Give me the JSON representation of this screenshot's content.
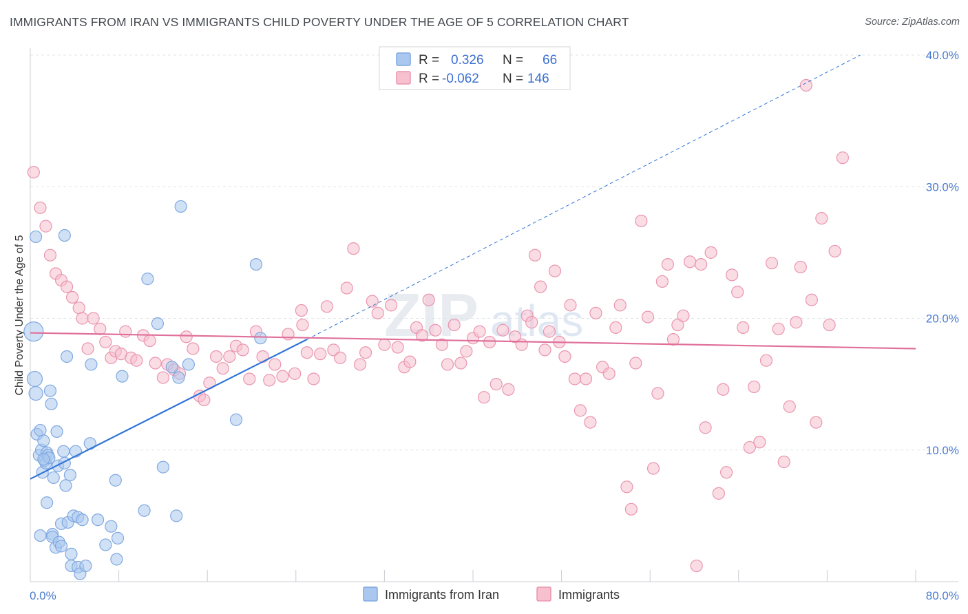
{
  "header": {
    "title": "IMMIGRANTS FROM IRAN VS IMMIGRANTS CHILD POVERTY UNDER THE AGE OF 5 CORRELATION CHART",
    "source": "Source: ZipAtlas.com"
  },
  "watermark": {
    "part1": "ZIP",
    "part2": "atlas"
  },
  "colors": {
    "blue_fill": "#aac8ef",
    "blue_stroke": "#7fa8e0",
    "blue_line": "#2f74d8",
    "pink_fill": "#f6c0cf",
    "pink_stroke": "#ea95ae",
    "pink_line": "#e0709a",
    "grid": "#dfe3e8",
    "tick_label": "#4a7cd0"
  },
  "legend": {
    "r_label": "R =",
    "n_label": "N =",
    "series": [
      {
        "r_value": "0.326",
        "n_value": "66"
      },
      {
        "r_value": "-0.062",
        "n_value": "146"
      }
    ]
  },
  "chart_data": {
    "type": "scatter",
    "title": "IMMIGRANTS FROM IRAN VS IMMIGRANTS CHILD POVERTY UNDER THE AGE OF 5 CORRELATION CHART",
    "xlabel": "",
    "ylabel": "Child Poverty Under the Age of 5",
    "xlim": [
      0,
      80
    ],
    "ylim": [
      0,
      40
    ],
    "x_tick_labels": [
      "0.0%",
      "80.0%"
    ],
    "y_ticks": [
      10,
      20,
      30,
      40
    ],
    "y_tick_labels": [
      "10.0%",
      "20.0%",
      "30.0%",
      "40.0%"
    ],
    "grid": true,
    "legend_position": "top-center",
    "series": [
      {
        "name": "Immigrants from Iran",
        "r": 0.326,
        "n": 66,
        "trend": {
          "x0": 0,
          "y0": 7.8,
          "x1": 25,
          "y1": 18.4,
          "extend_to_x": 75,
          "extend_to_y": 40
        },
        "points": [
          [
            0.3,
            19.0
          ],
          [
            0.4,
            15.4
          ],
          [
            0.5,
            14.3
          ],
          [
            0.8,
            9.6
          ],
          [
            0.6,
            11.2
          ],
          [
            0.9,
            11.5
          ],
          [
            1.0,
            10.0
          ],
          [
            1.1,
            8.3
          ],
          [
            1.2,
            10.7
          ],
          [
            1.3,
            9.2
          ],
          [
            1.4,
            9.0
          ],
          [
            1.5,
            9.8
          ],
          [
            1.6,
            9.6
          ],
          [
            1.7,
            9.4
          ],
          [
            1.5,
            6.0
          ],
          [
            1.8,
            14.5
          ],
          [
            1.9,
            13.5
          ],
          [
            2.0,
            3.6
          ],
          [
            2.0,
            3.4
          ],
          [
            2.1,
            7.9
          ],
          [
            2.3,
            2.6
          ],
          [
            2.4,
            11.4
          ],
          [
            2.5,
            8.8
          ],
          [
            2.6,
            3.0
          ],
          [
            2.8,
            2.7
          ],
          [
            2.8,
            4.4
          ],
          [
            3.0,
            9.9
          ],
          [
            3.1,
            9.0
          ],
          [
            3.2,
            7.3
          ],
          [
            3.3,
            17.1
          ],
          [
            3.4,
            4.5
          ],
          [
            3.6,
            8.1
          ],
          [
            3.7,
            2.1
          ],
          [
            3.7,
            1.2
          ],
          [
            3.9,
            5.0
          ],
          [
            4.1,
            9.9
          ],
          [
            4.3,
            4.9
          ],
          [
            4.3,
            1.1
          ],
          [
            4.5,
            0.6
          ],
          [
            4.7,
            4.7
          ],
          [
            5.0,
            1.2
          ],
          [
            5.4,
            10.5
          ],
          [
            5.5,
            16.5
          ],
          [
            6.1,
            4.7
          ],
          [
            6.8,
            2.8
          ],
          [
            7.3,
            4.2
          ],
          [
            7.7,
            7.7
          ],
          [
            7.8,
            1.7
          ],
          [
            7.9,
            3.3
          ],
          [
            8.3,
            15.6
          ],
          [
            10.3,
            5.4
          ],
          [
            10.6,
            23.0
          ],
          [
            11.5,
            19.6
          ],
          [
            12.0,
            8.7
          ],
          [
            12.8,
            16.3
          ],
          [
            13.2,
            5.0
          ],
          [
            13.4,
            15.5
          ],
          [
            14.3,
            16.5
          ],
          [
            13.6,
            28.5
          ],
          [
            18.6,
            12.3
          ],
          [
            20.4,
            24.1
          ],
          [
            20.8,
            18.5
          ],
          [
            0.5,
            26.2
          ],
          [
            3.1,
            26.3
          ],
          [
            1.2,
            9.3
          ],
          [
            0.9,
            3.5
          ]
        ]
      },
      {
        "name": "Immigrants",
        "r": -0.062,
        "n": 146,
        "trend": {
          "x0": 0,
          "y0": 18.9,
          "x1": 80,
          "y1": 17.7
        },
        "points": [
          [
            0.3,
            31.1
          ],
          [
            0.9,
            28.4
          ],
          [
            1.4,
            27.0
          ],
          [
            1.8,
            24.8
          ],
          [
            2.3,
            23.4
          ],
          [
            2.8,
            22.9
          ],
          [
            3.3,
            22.4
          ],
          [
            3.8,
            21.6
          ],
          [
            4.4,
            20.8
          ],
          [
            4.7,
            20.0
          ],
          [
            5.2,
            17.7
          ],
          [
            5.7,
            20.0
          ],
          [
            6.3,
            19.2
          ],
          [
            6.8,
            18.2
          ],
          [
            7.3,
            17.0
          ],
          [
            7.7,
            17.5
          ],
          [
            8.2,
            17.3
          ],
          [
            8.6,
            19.0
          ],
          [
            9.1,
            17.0
          ],
          [
            9.6,
            16.8
          ],
          [
            10.2,
            18.7
          ],
          [
            10.8,
            18.3
          ],
          [
            11.3,
            16.6
          ],
          [
            12.0,
            15.5
          ],
          [
            12.4,
            16.5
          ],
          [
            13.0,
            16.1
          ],
          [
            13.5,
            15.8
          ],
          [
            14.1,
            18.6
          ],
          [
            14.7,
            17.7
          ],
          [
            15.3,
            14.1
          ],
          [
            15.7,
            13.8
          ],
          [
            16.2,
            15.1
          ],
          [
            16.8,
            17.1
          ],
          [
            17.4,
            16.2
          ],
          [
            18.0,
            17.1
          ],
          [
            18.6,
            17.9
          ],
          [
            19.2,
            17.6
          ],
          [
            19.8,
            15.4
          ],
          [
            20.4,
            19.0
          ],
          [
            21.0,
            17.1
          ],
          [
            21.6,
            15.3
          ],
          [
            22.1,
            16.5
          ],
          [
            22.8,
            15.6
          ],
          [
            23.3,
            18.8
          ],
          [
            23.9,
            15.8
          ],
          [
            24.5,
            20.6
          ],
          [
            25.0,
            17.4
          ],
          [
            25.6,
            15.4
          ],
          [
            26.2,
            17.3
          ],
          [
            26.8,
            20.9
          ],
          [
            27.4,
            17.6
          ],
          [
            28.0,
            17.0
          ],
          [
            28.6,
            22.3
          ],
          [
            29.2,
            25.3
          ],
          [
            29.8,
            16.5
          ],
          [
            30.3,
            17.4
          ],
          [
            30.9,
            21.3
          ],
          [
            31.4,
            20.4
          ],
          [
            32.0,
            18.0
          ],
          [
            32.6,
            21.0
          ],
          [
            33.2,
            17.8
          ],
          [
            33.8,
            16.3
          ],
          [
            34.3,
            16.7
          ],
          [
            34.9,
            19.3
          ],
          [
            35.4,
            18.7
          ],
          [
            36.0,
            21.4
          ],
          [
            36.6,
            19.1
          ],
          [
            37.2,
            18.0
          ],
          [
            37.7,
            16.5
          ],
          [
            38.3,
            19.5
          ],
          [
            38.9,
            16.6
          ],
          [
            39.4,
            17.5
          ],
          [
            40.0,
            18.5
          ],
          [
            40.6,
            19.0
          ],
          [
            41.0,
            14.0
          ],
          [
            41.5,
            18.2
          ],
          [
            42.1,
            15.0
          ],
          [
            42.7,
            19.1
          ],
          [
            43.2,
            14.6
          ],
          [
            43.8,
            18.6
          ],
          [
            44.4,
            18.0
          ],
          [
            44.9,
            20.2
          ],
          [
            45.3,
            19.7
          ],
          [
            45.6,
            24.8
          ],
          [
            46.1,
            22.4
          ],
          [
            46.5,
            17.6
          ],
          [
            46.9,
            19.0
          ],
          [
            47.4,
            23.6
          ],
          [
            47.8,
            18.2
          ],
          [
            48.3,
            17.1
          ],
          [
            48.8,
            21.0
          ],
          [
            49.2,
            15.4
          ],
          [
            49.7,
            13.0
          ],
          [
            50.2,
            15.4
          ],
          [
            50.6,
            12.1
          ],
          [
            51.1,
            20.4
          ],
          [
            51.7,
            16.3
          ],
          [
            52.3,
            15.8
          ],
          [
            52.9,
            19.3
          ],
          [
            53.3,
            21.0
          ],
          [
            53.9,
            7.2
          ],
          [
            54.3,
            5.5
          ],
          [
            54.7,
            16.6
          ],
          [
            55.2,
            27.4
          ],
          [
            55.8,
            20.1
          ],
          [
            56.3,
            8.6
          ],
          [
            56.7,
            14.3
          ],
          [
            57.1,
            22.8
          ],
          [
            57.6,
            24.1
          ],
          [
            58.1,
            18.4
          ],
          [
            58.5,
            19.5
          ],
          [
            59.0,
            20.2
          ],
          [
            59.6,
            24.3
          ],
          [
            60.2,
            1.2
          ],
          [
            60.6,
            24.1
          ],
          [
            61.0,
            11.7
          ],
          [
            61.5,
            25.0
          ],
          [
            62.2,
            6.7
          ],
          [
            62.6,
            14.6
          ],
          [
            62.9,
            8.3
          ],
          [
            63.4,
            23.3
          ],
          [
            63.9,
            22.0
          ],
          [
            64.4,
            19.3
          ],
          [
            65.0,
            10.2
          ],
          [
            65.4,
            14.8
          ],
          [
            65.9,
            10.6
          ],
          [
            66.5,
            16.8
          ],
          [
            67.0,
            24.2
          ],
          [
            67.6,
            19.2
          ],
          [
            68.1,
            9.1
          ],
          [
            68.6,
            13.3
          ],
          [
            69.2,
            19.7
          ],
          [
            69.6,
            23.9
          ],
          [
            70.1,
            37.7
          ],
          [
            70.6,
            21.4
          ],
          [
            71.0,
            12.1
          ],
          [
            71.5,
            27.6
          ],
          [
            72.2,
            19.5
          ],
          [
            72.7,
            25.1
          ],
          [
            73.4,
            32.2
          ],
          [
            24.6,
            19.5
          ]
        ]
      }
    ]
  },
  "bottom_legend": {
    "items": [
      "Immigrants from Iran",
      "Immigrants"
    ]
  }
}
